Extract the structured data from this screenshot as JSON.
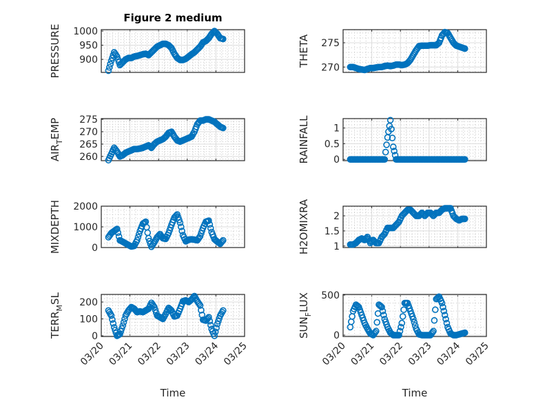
{
  "figure_title": "Figure 2 medium",
  "marker_color": "#0072BD",
  "chart_data": [
    {
      "type": "scatter",
      "ylabel": "PRESSURE",
      "column": "left",
      "row": 0,
      "ylim": [
        854,
        1005
      ],
      "yticks": [
        900,
        950,
        1000
      ],
      "title": "Figure 2 medium",
      "values": [
        860,
        895,
        925,
        910,
        880,
        890,
        900,
        905,
        905,
        910,
        912,
        915,
        918,
        920,
        915,
        925,
        935,
        945,
        950,
        955,
        955,
        950,
        940,
        920,
        905,
        898,
        898,
        902,
        910,
        918,
        925,
        935,
        945,
        960,
        965,
        975,
        990,
        1000,
        990,
        975,
        972
      ]
    },
    {
      "type": "scatter",
      "ylabel": "THETA",
      "column": "right",
      "row": 0,
      "ylim": [
        268.9,
        277.7
      ],
      "yticks": [
        270,
        275
      ],
      "values": [
        270,
        270,
        269.8,
        269.6,
        269.5,
        269.4,
        269.6,
        269.8,
        269.8,
        269.9,
        270,
        270,
        270.2,
        270.3,
        270.2,
        270.3,
        270.5,
        270.5,
        270.4,
        270.5,
        270.8,
        271.5,
        272.5,
        273.5,
        274.3,
        274.4,
        274.4,
        274.4,
        274.5,
        274.5,
        274.5,
        275,
        276.5,
        277.2,
        277,
        276,
        275,
        274.4,
        274.2,
        274,
        273.8
      ]
    },
    {
      "type": "scatter",
      "ylabel": "AIR_TEMP",
      "column": "left",
      "row": 1,
      "ylim": [
        258.3,
        275.3
      ],
      "yticks": [
        260,
        265,
        270,
        275
      ],
      "values": [
        258.5,
        261,
        263.5,
        262,
        260,
        260.5,
        261.5,
        262,
        262.5,
        263,
        263,
        263.2,
        263.5,
        264,
        264.5,
        263.5,
        265,
        266,
        266.5,
        267,
        268,
        269.5,
        270,
        268,
        266.5,
        266,
        266.5,
        267,
        267.5,
        268,
        270,
        273,
        274.5,
        274.5,
        275,
        275,
        274.5,
        274,
        273,
        272,
        271.5
      ]
    },
    {
      "type": "scatter",
      "ylabel": "RAINFALL",
      "column": "right",
      "row": 1,
      "ylim": [
        -0.04,
        1.3
      ],
      "yticks": [
        0,
        0.5,
        1
      ],
      "values": [
        0,
        0,
        0,
        0,
        0,
        0,
        0,
        0,
        0,
        0,
        0,
        0,
        0,
        0.7,
        1.25,
        0.4,
        0,
        0,
        0,
        0,
        0,
        0,
        0,
        0,
        0,
        0,
        0,
        0,
        0,
        0,
        0,
        0,
        0,
        0,
        0,
        0,
        0,
        0,
        0,
        0,
        0
      ]
    },
    {
      "type": "scatter",
      "ylabel": "MIXDEPTH",
      "column": "left",
      "row": 2,
      "ylim": [
        0,
        2000
      ],
      "yticks": [
        0,
        1000,
        2000
      ],
      "values": [
        500,
        700,
        800,
        900,
        350,
        280,
        200,
        120,
        50,
        80,
        350,
        800,
        1150,
        1250,
        450,
        40,
        250,
        500,
        650,
        450,
        420,
        700,
        1100,
        1450,
        1600,
        1200,
        600,
        300,
        380,
        400,
        380,
        350,
        550,
        950,
        1250,
        1300,
        750,
        400,
        280,
        180,
        350
      ]
    },
    {
      "type": "scatter",
      "ylabel": "H2OMIXRA",
      "column": "right",
      "row": 2,
      "ylim": [
        0.95,
        2.32
      ],
      "yticks": [
        1,
        1.5,
        2
      ],
      "values": [
        1.05,
        1.05,
        1.1,
        1.2,
        1.25,
        1.2,
        1.3,
        1.1,
        1.2,
        1.1,
        1.1,
        1.3,
        1.4,
        1.6,
        1.6,
        1.6,
        1.7,
        1.8,
        2.0,
        2.1,
        2.2,
        2.2,
        2.1,
        2.0,
        2.0,
        2.1,
        2.0,
        2.1,
        2.1,
        2.0,
        2.1,
        2.1,
        2.2,
        2.25,
        2.25,
        2.25,
        2.0,
        1.9,
        1.85,
        1.9,
        1.9
      ]
    },
    {
      "type": "scatter",
      "ylabel": "TERR_MSL",
      "column": "left",
      "row": 3,
      "ylim": [
        -4,
        245
      ],
      "yticks": [
        0,
        100,
        200
      ],
      "xlabel": "Time",
      "values": [
        150,
        120,
        50,
        0,
        10,
        60,
        120,
        150,
        170,
        160,
        140,
        145,
        140,
        150,
        160,
        195,
        170,
        120,
        110,
        100,
        130,
        165,
        150,
        115,
        120,
        160,
        205,
        210,
        200,
        215,
        235,
        205,
        180,
        95,
        90,
        110,
        40,
        0,
        70,
        120,
        150
      ]
    },
    {
      "type": "scatter",
      "ylabel": "SUN_FLUX",
      "column": "right",
      "row": 3,
      "ylim": [
        -17,
        508
      ],
      "yticks": [
        0,
        500
      ],
      "xlabel": "Time",
      "values": [
        100,
        300,
        380,
        350,
        250,
        150,
        80,
        20,
        0,
        50,
        380,
        350,
        200,
        100,
        30,
        0,
        0,
        0,
        150,
        400,
        400,
        300,
        200,
        80,
        10,
        0,
        0,
        0,
        0,
        50,
        450,
        480,
        400,
        250,
        100,
        20,
        0,
        0,
        10,
        20,
        30
      ]
    }
  ],
  "x_axis": {
    "label": "Time",
    "unit": "days since 03/20",
    "start": 0.25,
    "step": 0.1,
    "xlim": [
      0,
      5
    ],
    "ticklabels": [
      "03/20",
      "03/21",
      "03/22",
      "03/23",
      "03/24",
      "03/25"
    ]
  }
}
